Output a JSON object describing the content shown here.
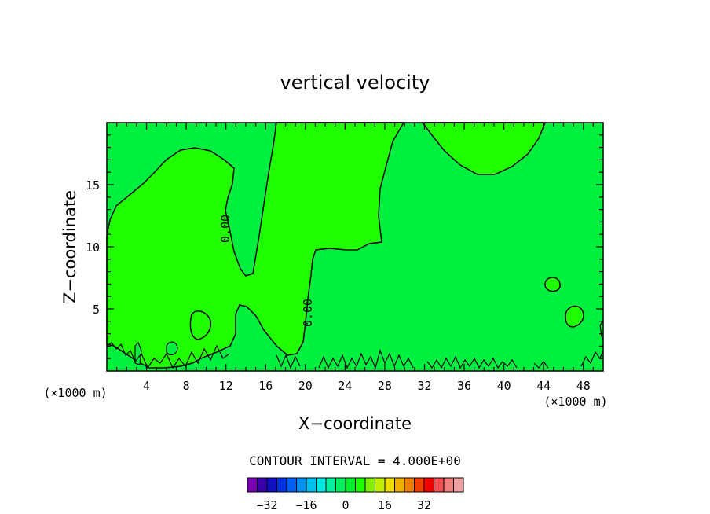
{
  "chart_data": {
    "type": "contour",
    "title": "vertical velocity",
    "xlabel": "X−coordinate",
    "ylabel": "Z−coordinate",
    "x_unit_left": "(×1000 m)",
    "x_unit_right": "(×1000 m)",
    "xlim": [
      0,
      50
    ],
    "ylim": [
      0,
      20
    ],
    "x_ticks": [
      4,
      8,
      12,
      16,
      20,
      24,
      28,
      32,
      36,
      40,
      44,
      48
    ],
    "y_ticks": [
      5,
      10,
      15
    ],
    "contour_labels": [
      {
        "text": "0.00",
        "x": 12.3,
        "y": 11.3
      },
      {
        "text": "0.00",
        "x": 20.3,
        "y": 4.8
      }
    ],
    "contour_interval_text": "CONTOUR INTERVAL = 4.000E+00",
    "colorbar": {
      "colors": [
        "#7a00b4",
        "#3a00a8",
        "#1010c0",
        "#0030e0",
        "#0060f0",
        "#0090f0",
        "#00c0f0",
        "#00e8e0",
        "#00f0a0",
        "#00f060",
        "#00f030",
        "#20ff00",
        "#80f000",
        "#c0f000",
        "#f0e000",
        "#f0b000",
        "#f08000",
        "#f04000",
        "#f00000",
        "#f05050",
        "#f08080",
        "#f0a0a0"
      ],
      "tick_labels": [
        "−32",
        "−16",
        "0",
        "16",
        "32"
      ],
      "tick_values": [
        -32,
        -16,
        0,
        16,
        32
      ]
    },
    "region_colors": {
      "negative_zero_band": "#00f040",
      "positive_band": "#20ff00",
      "outline": "#000000"
    },
    "grid": false
  }
}
